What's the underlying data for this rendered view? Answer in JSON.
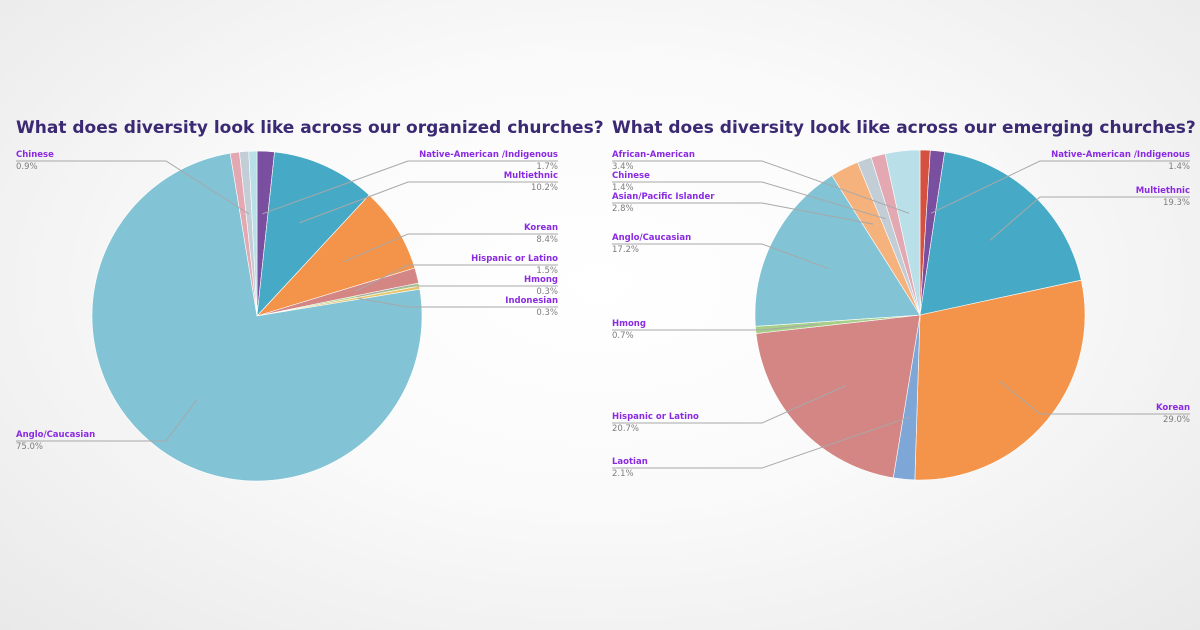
{
  "chart_data": [
    {
      "type": "pie",
      "title": "What does diversity look like across our organized churches?",
      "slices": [
        {
          "label": "Native-American /Indigenous",
          "value": 1.7,
          "display": "1.7%",
          "color": "#7b4fa0"
        },
        {
          "label": "Multiethnic",
          "value": 10.2,
          "display": "10.2%",
          "color": "#46a9c6"
        },
        {
          "label": "Korean",
          "value": 8.4,
          "display": "8.4%",
          "color": "#f4944a"
        },
        {
          "label": "Hispanic or Latino",
          "value": 1.5,
          "display": "1.5%",
          "color": "#d38684"
        },
        {
          "label": "Hmong",
          "value": 0.3,
          "display": "0.3%",
          "color": "#a6d08a"
        },
        {
          "label": "Indonesian",
          "value": 0.3,
          "display": "0.3%",
          "color": "#e8c36a"
        },
        {
          "label": "Anglo/Caucasian",
          "value": 75.0,
          "display": "75.0%",
          "color": "#82c3d5"
        },
        {
          "label": "",
          "value": 0.9,
          "display": "",
          "color": "#e3a8b1"
        },
        {
          "label": "Chinese",
          "value": 0.9,
          "display": "0.9%",
          "color": "#c2cdd6"
        },
        {
          "label": "",
          "value": 0.8,
          "display": "",
          "color": "#b9dfe8"
        }
      ]
    },
    {
      "type": "pie",
      "title": "What does diversity look like across our emerging churches?",
      "slices": [
        {
          "label": "",
          "value": 1.0,
          "display": "",
          "color": "#d4513f"
        },
        {
          "label": "Native-American /Indigenous",
          "value": 1.4,
          "display": "1.4%",
          "color": "#7b4fa0"
        },
        {
          "label": "Multiethnic",
          "value": 19.3,
          "display": "19.3%",
          "color": "#46a9c6"
        },
        {
          "label": "Korean",
          "value": 29.0,
          "display": "29.0%",
          "color": "#f4944a"
        },
        {
          "label": "Laotian",
          "value": 2.1,
          "display": "2.1%",
          "color": "#7ea6d6"
        },
        {
          "label": "Hispanic or Latino",
          "value": 20.7,
          "display": "20.7%",
          "color": "#d38684"
        },
        {
          "label": "Hmong",
          "value": 0.7,
          "display": "0.7%",
          "color": "#a6d08a"
        },
        {
          "label": "Anglo/Caucasian",
          "value": 17.2,
          "display": "17.2%",
          "color": "#82c3d5"
        },
        {
          "label": "Asian/Pacific Islander",
          "value": 2.8,
          "display": "2.8%",
          "color": "#f6b27c"
        },
        {
          "label": "Chinese",
          "value": 1.4,
          "display": "1.4%",
          "color": "#c2cdd6"
        },
        {
          "label": "",
          "value": 1.4,
          "display": "",
          "color": "#e3a8b1"
        },
        {
          "label": "African-American",
          "value": 3.4,
          "display": "3.4%",
          "color": "#b9dfe8"
        }
      ]
    }
  ]
}
